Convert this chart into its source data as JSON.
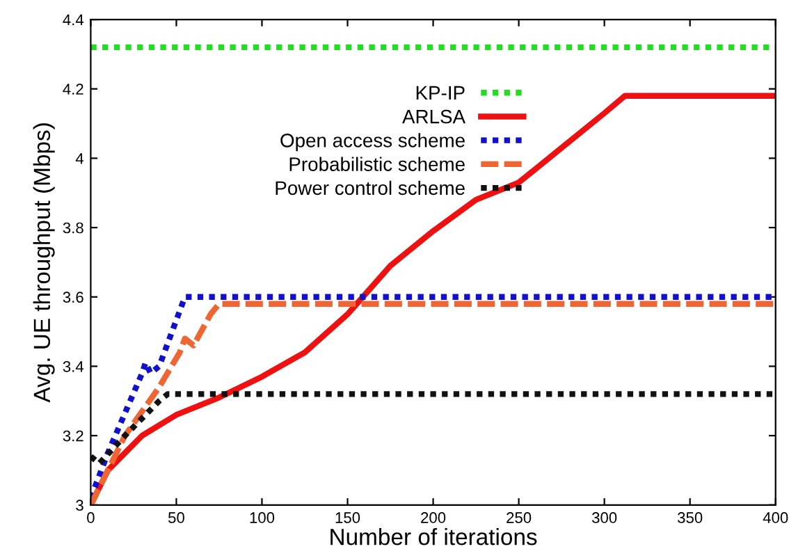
{
  "chart_data": {
    "type": "line",
    "xlabel": "Number of iterations",
    "ylabel": "Avg. UE throughput (Mbps)",
    "xlim": [
      0,
      400
    ],
    "xticks": [
      0,
      50,
      100,
      150,
      200,
      250,
      300,
      350,
      400
    ],
    "ylim": [
      3,
      4.4
    ],
    "yticks": [
      3,
      3.2,
      3.4,
      3.6,
      3.8,
      4,
      4.2,
      4.4
    ],
    "grid": false,
    "legend": "top",
    "marker": "none",
    "series": [
      {
        "name": "KP-IP",
        "color": "#22dd22",
        "line_style": "dotted",
        "x": [
          0,
          400
        ],
        "values": [
          4.32,
          4.32
        ]
      },
      {
        "name": "ARLSA",
        "color": "#ee1111",
        "line_style": "solid",
        "x": [
          0,
          10,
          20,
          30,
          50,
          75,
          100,
          125,
          150,
          175,
          200,
          225,
          250,
          275,
          300,
          312,
          400
        ],
        "values": [
          3.0,
          3.1,
          3.15,
          3.2,
          3.26,
          3.31,
          3.37,
          3.44,
          3.55,
          3.69,
          3.79,
          3.88,
          3.93,
          4.03,
          4.13,
          4.18,
          4.18
        ]
      },
      {
        "name": "Open access scheme",
        "color": "#1111cc",
        "line_style": "dotted",
        "x": [
          0,
          10,
          30,
          32,
          35,
          40,
          55,
          400
        ],
        "values": [
          3.02,
          3.15,
          3.38,
          3.41,
          3.38,
          3.4,
          3.6,
          3.6
        ]
      },
      {
        "name": "Probabilistic scheme",
        "color": "#ee6633",
        "line_style": "dashed",
        "x": [
          0,
          20,
          40,
          52,
          55,
          60,
          70,
          75,
          400
        ],
        "values": [
          3.0,
          3.2,
          3.34,
          3.44,
          3.48,
          3.46,
          3.55,
          3.58,
          3.58
        ]
      },
      {
        "name": "Power control scheme",
        "color": "#111111",
        "line_style": "dotted",
        "x": [
          0,
          5,
          20,
          40,
          45,
          400
        ],
        "values": [
          3.14,
          3.12,
          3.2,
          3.3,
          3.32,
          3.32
        ]
      }
    ]
  }
}
